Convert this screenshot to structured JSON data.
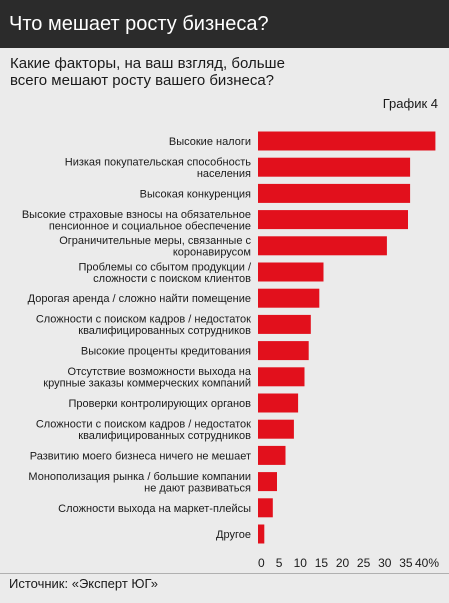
{
  "header": {
    "title": "Что мешает росту бизнеса?"
  },
  "subtitle": {
    "line1": "Какие факторы, на ваш взгляд, больше",
    "line2": "всего мешают росту вашего бизнеса?"
  },
  "chart_label": "График 4",
  "source": "Источник: «Эксперт ЮГ»",
  "colors": {
    "bar": "#e2101c",
    "header_bg": "#2b2b2b",
    "page_bg": "#ebebeb"
  },
  "chart_data": {
    "type": "bar",
    "orientation": "horizontal",
    "title": "Какие факторы, на ваш взгляд, больше всего мешают росту вашего бизнеса?",
    "xlabel": "",
    "ylabel": "",
    "xlim": [
      0,
      40
    ],
    "x_ticks": [
      "0",
      "5",
      "10",
      "15",
      "20",
      "25",
      "30",
      "35",
      "40%"
    ],
    "grid": false,
    "categories": [
      [
        "Высокие налоги"
      ],
      [
        "Низкая покупательская способность",
        "населения"
      ],
      [
        "Высокая конкуренция"
      ],
      [
        "Высокие страховые взносы на обязательное",
        "пенсионное и социальное обеспечение"
      ],
      [
        "Ограничительные меры, связанные с",
        "коронавирусом"
      ],
      [
        "Проблемы со сбытом продукции /",
        "сложности с поиском клиентов"
      ],
      [
        "Дорогая аренда / сложно найти помещение"
      ],
      [
        "Сложности с поиском кадров / недостаток",
        "квалифицированных сотрудников"
      ],
      [
        "Высокие проценты кредитования"
      ],
      [
        "Отсутствие возможности выхода на",
        "крупные заказы коммерческих компаний"
      ],
      [
        "Проверки контролирующих органов"
      ],
      [
        "Сложности с поиском кадров / недостаток",
        "квалифицированных сотрудников"
      ],
      [
        "Развитию моего бизнеса ничего не мешает"
      ],
      [
        "Монополизация рынка / большие компании",
        "не дают развиваться"
      ],
      [
        "Сложности выхода на маркет-плейсы"
      ],
      [
        "Другое"
      ]
    ],
    "values": [
      42,
      36,
      36,
      35.5,
      30.5,
      15.5,
      14.5,
      12.5,
      12,
      11,
      9.5,
      8.5,
      6.5,
      4.5,
      3.5,
      1.5
    ]
  }
}
